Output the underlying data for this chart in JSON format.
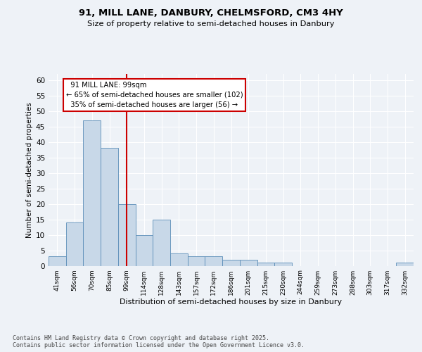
{
  "title_line1": "91, MILL LANE, DANBURY, CHELMSFORD, CM3 4HY",
  "title_line2": "Size of property relative to semi-detached houses in Danbury",
  "xlabel": "Distribution of semi-detached houses by size in Danbury",
  "ylabel": "Number of semi-detached properties",
  "categories": [
    "41sqm",
    "56sqm",
    "70sqm",
    "85sqm",
    "99sqm",
    "114sqm",
    "128sqm",
    "143sqm",
    "157sqm",
    "172sqm",
    "186sqm",
    "201sqm",
    "215sqm",
    "230sqm",
    "244sqm",
    "259sqm",
    "273sqm",
    "288sqm",
    "303sqm",
    "317sqm",
    "332sqm"
  ],
  "values": [
    3,
    14,
    47,
    38,
    20,
    10,
    15,
    4,
    3,
    3,
    2,
    2,
    1,
    1,
    0,
    0,
    0,
    0,
    0,
    0,
    1
  ],
  "bar_color": "#c8d8e8",
  "bar_edge_color": "#5b8db8",
  "reference_line_x": 4,
  "reference_label": "91 MILL LANE: 99sqm",
  "pct_smaller": 65,
  "pct_smaller_count": 102,
  "pct_larger": 35,
  "pct_larger_count": 56,
  "annotation_box_color": "#cc0000",
  "ylim": [
    0,
    62
  ],
  "yticks": [
    0,
    5,
    10,
    15,
    20,
    25,
    30,
    35,
    40,
    45,
    50,
    55,
    60
  ],
  "bg_color": "#eef2f7",
  "grid_color": "#ffffff",
  "footer": "Contains HM Land Registry data © Crown copyright and database right 2025.\nContains public sector information licensed under the Open Government Licence v3.0."
}
